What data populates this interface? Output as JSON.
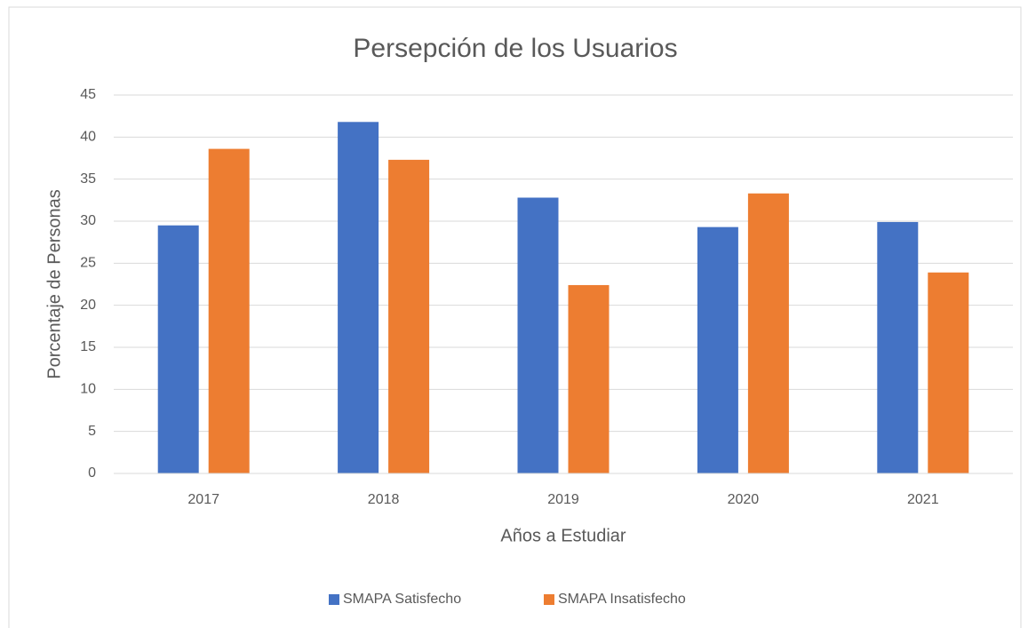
{
  "chart_data": {
    "type": "bar",
    "title": "Persepción de los Usuarios",
    "x_label": "Años a Estudiar",
    "y_label": "Porcentaje de Personas",
    "categories": [
      "2017",
      "2018",
      "2019",
      "2020",
      "2021"
    ],
    "series": [
      {
        "name": "SMAPA Satisfecho",
        "color": "#4472c4",
        "values": [
          29.5,
          41.8,
          32.8,
          29.3,
          29.9
        ]
      },
      {
        "name": "SMAPA Insatisfecho",
        "color": "#ed7d31",
        "values": [
          38.6,
          37.3,
          22.4,
          33.3,
          23.9
        ]
      }
    ],
    "ylim": [
      0,
      45
    ],
    "yticks": [
      0,
      5,
      10,
      15,
      20,
      25,
      30,
      35,
      40,
      45
    ],
    "grid": true,
    "legend": "bottom"
  }
}
